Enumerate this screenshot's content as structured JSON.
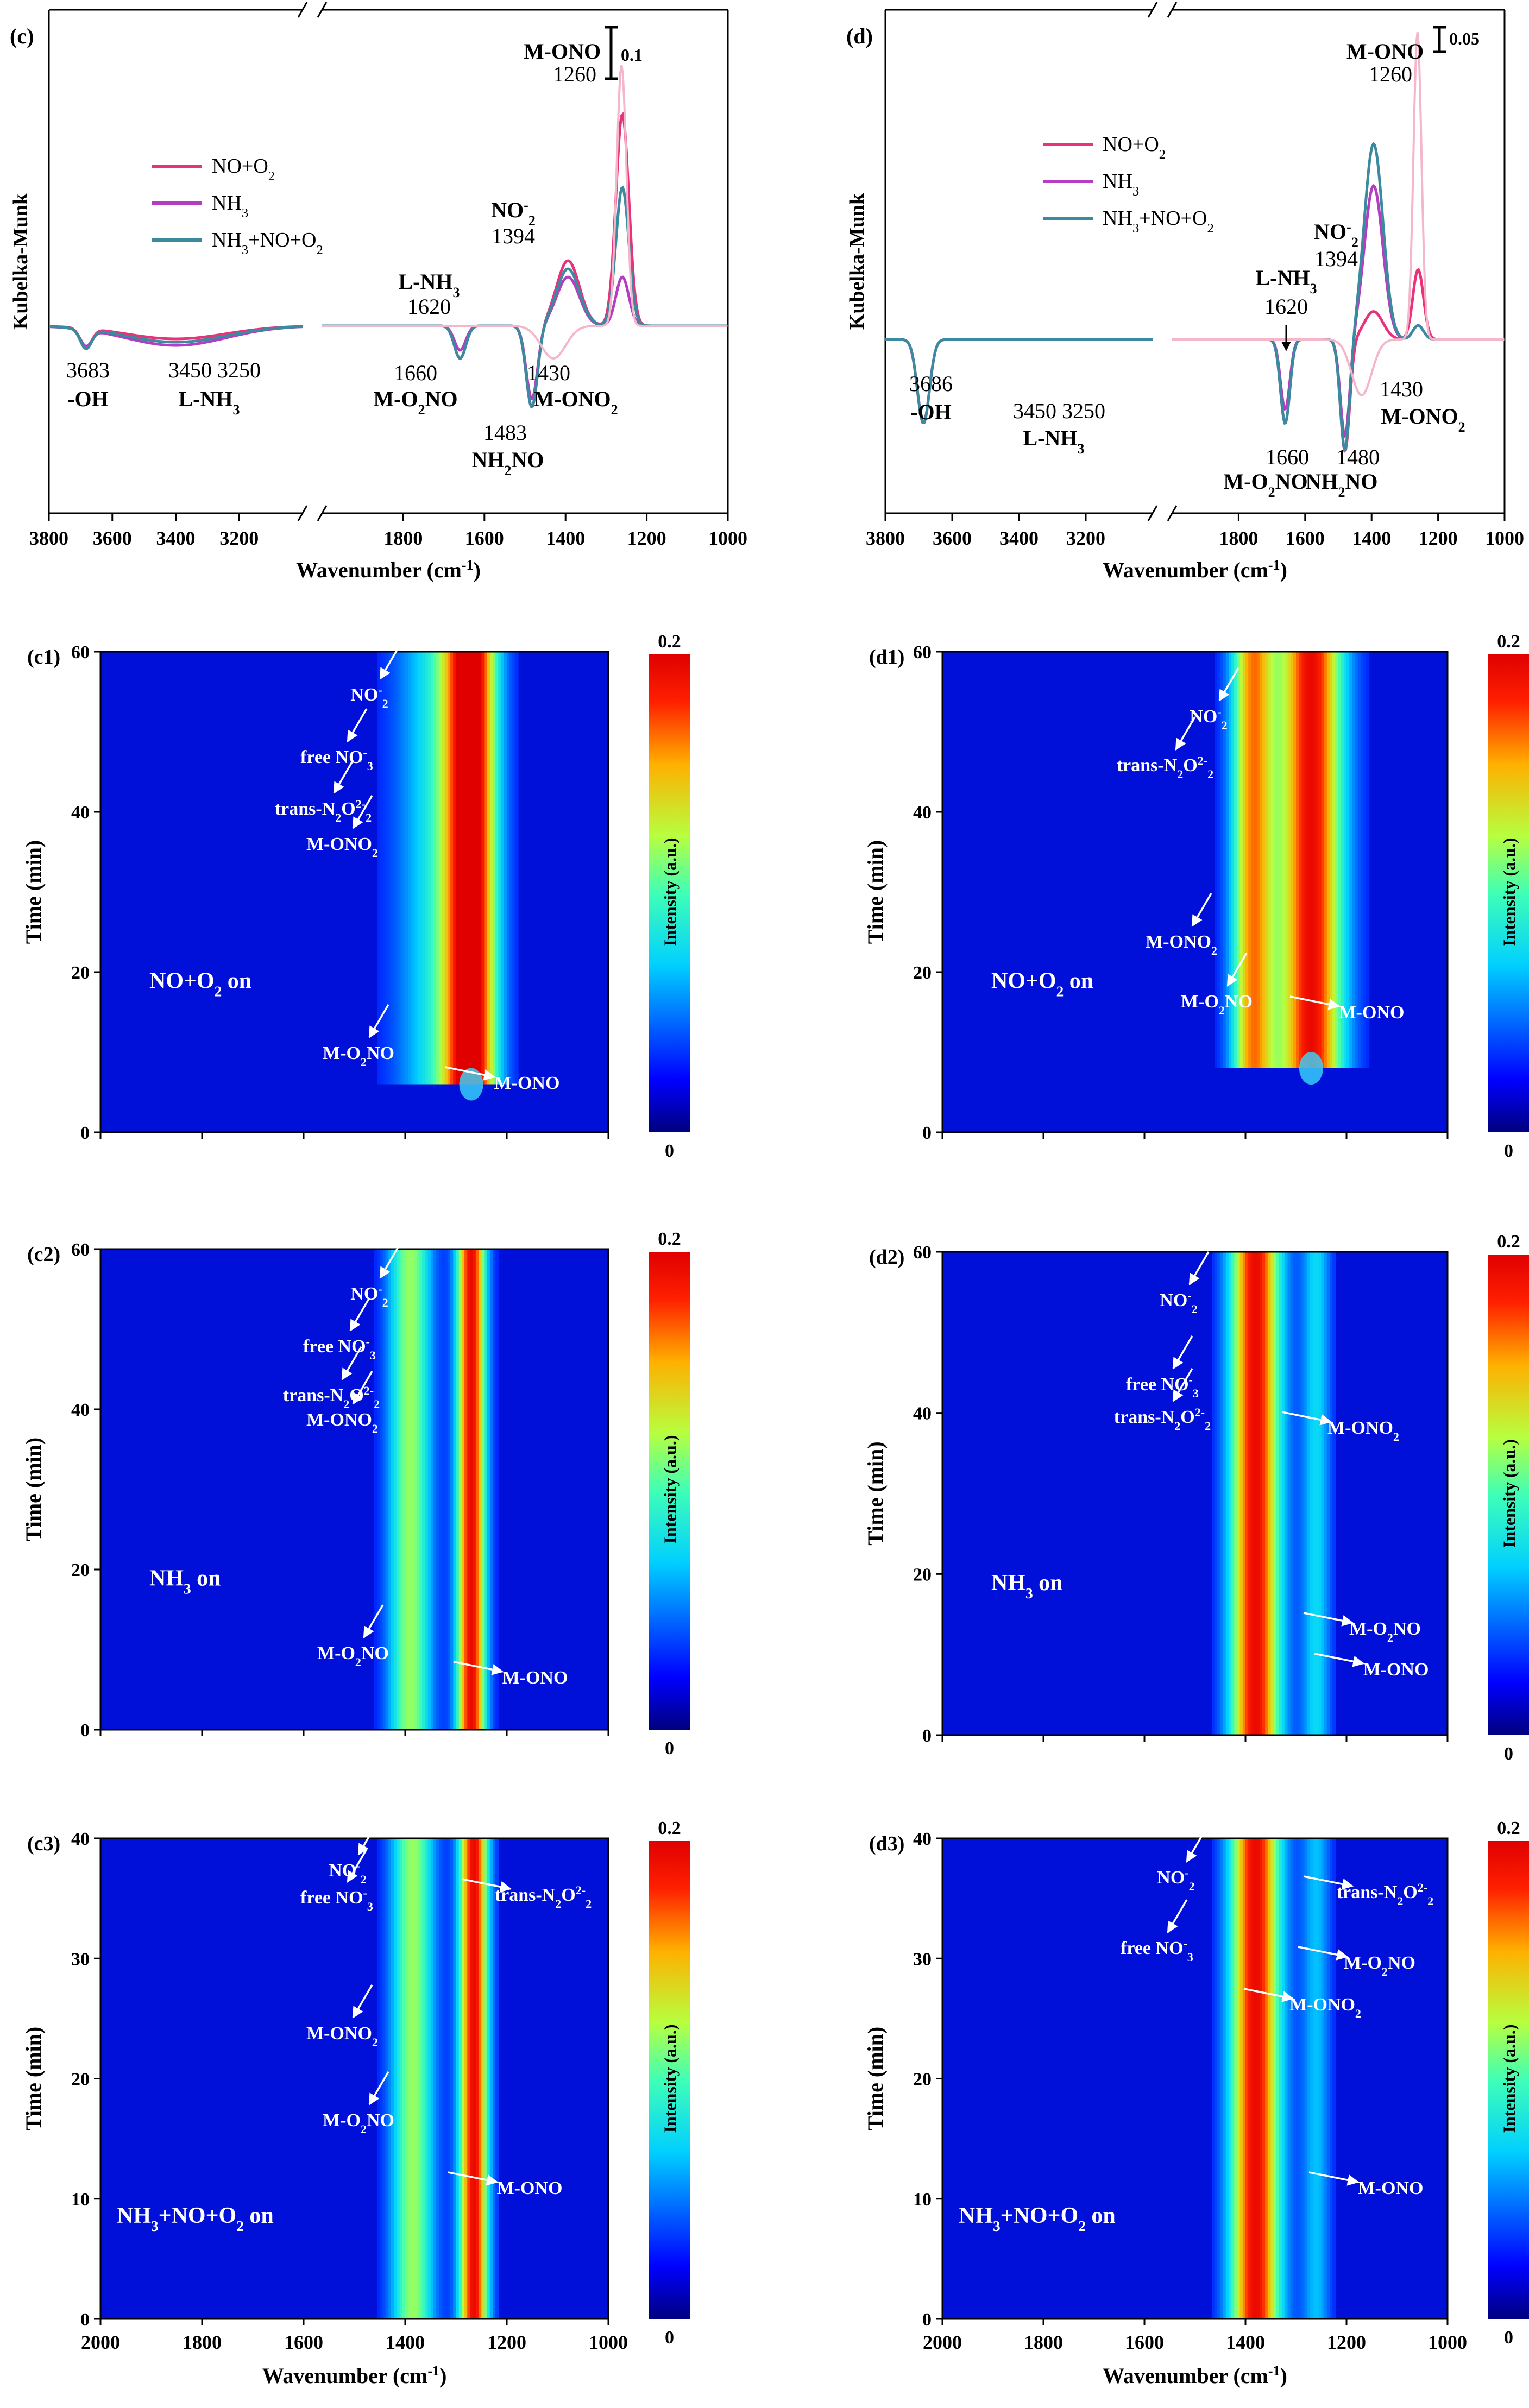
{
  "spectra": [
    {
      "id": "c",
      "panel_label": "(c)",
      "ylabel": "Kubelka-Munk",
      "xlabel": "Wavenumber (cm",
      "xlabel_sup": "-1",
      "xlabel_close": ")",
      "left_ticks": [
        3800,
        3600,
        3400,
        3200
      ],
      "right_ticks": [
        1800,
        1600,
        1400,
        1200,
        1000
      ],
      "scale_bar_label": "0.1",
      "legend": [
        {
          "label": "NO+O",
          "sub": "2",
          "tail": "",
          "color": "#e8337a"
        },
        {
          "label": "NH",
          "sub": "3",
          "tail": "",
          "color": "#b63dc1"
        },
        {
          "label": "NH",
          "sub": "3",
          "tail": "+NO+O",
          "sub2": "2",
          "color": "#3c8aa0"
        }
      ],
      "annotations": [
        {
          "t": "M-ONO",
          "bold": true
        },
        {
          "t": "1260"
        },
        {
          "t": "NO",
          "sup": "-",
          "sub": "2",
          "bold": true
        },
        {
          "t": "1394"
        },
        {
          "t": "L-NH",
          "sub": "3",
          "bold": true
        },
        {
          "t": "1620"
        },
        {
          "t": "3683"
        },
        {
          "t": "-OH",
          "bold": true
        },
        {
          "t": "3450 3250"
        },
        {
          "t": "L-NH",
          "sub": "3",
          "bold": true
        },
        {
          "t": "1660"
        },
        {
          "t": "M-O",
          "sub": "2",
          "tail": "NO",
          "bold": true
        },
        {
          "t": "1430"
        },
        {
          "t": "M-ONO",
          "sub": "2",
          "bold": true
        },
        {
          "t": "1483"
        },
        {
          "t": "NH",
          "sub": "2",
          "tail": "NO",
          "bold": true
        }
      ],
      "series_note": "peak heights in Kubelka-Munk units, estimated",
      "peaks": {
        "NO+O2": {
          "1260": 0.13,
          "1394": 0.04,
          "1483": -0.05,
          "1660": -0.02,
          "3683": -0.012,
          "3400": -0.008
        },
        "NH3": {
          "1260": 0.03,
          "1394": 0.03,
          "1483": -0.045,
          "1660": -0.015,
          "3683": -0.01,
          "3400": -0.012
        },
        "NH3+NO+O2": {
          "1260": 0.085,
          "1394": 0.035,
          "1483": -0.05,
          "1660": -0.02,
          "3683": -0.012,
          "3400": -0.01
        }
      }
    },
    {
      "id": "d",
      "panel_label": "(d)",
      "ylabel": "Kubelka-Munk",
      "xlabel": "Wavenumber (cm",
      "xlabel_sup": "-1",
      "xlabel_close": ")",
      "left_ticks": [
        3800,
        3600,
        3400,
        3200
      ],
      "right_ticks": [
        1800,
        1600,
        1400,
        1200,
        1000
      ],
      "scale_bar_label": "0.05",
      "legend": [
        {
          "label": "NO+O",
          "sub": "2",
          "tail": "",
          "color": "#e8337a"
        },
        {
          "label": "NH",
          "sub": "3",
          "tail": "",
          "color": "#b63dc1"
        },
        {
          "label": "NH",
          "sub": "3",
          "tail": "+NO+O",
          "sub2": "2",
          "color": "#3c8aa0"
        }
      ],
      "annotations": [
        {
          "t": "M-ONO",
          "bold": true
        },
        {
          "t": "1260"
        },
        {
          "t": "NO",
          "sup": "-",
          "sub": "2",
          "bold": true
        },
        {
          "t": "1394"
        },
        {
          "t": "L-NH",
          "sub": "3",
          "bold": true
        },
        {
          "t": "1620"
        },
        {
          "t": "3686"
        },
        {
          "t": "-OH",
          "bold": true
        },
        {
          "t": "3450 3250"
        },
        {
          "t": "L-NH",
          "sub": "3",
          "bold": true
        },
        {
          "t": "1660"
        },
        {
          "t": "M-O",
          "sub": "2",
          "tail": "NO",
          "bold": true
        },
        {
          "t": "1430"
        },
        {
          "t": "M-ONO",
          "sub": "2",
          "bold": true
        },
        {
          "t": "1480"
        },
        {
          "t": "NH",
          "sub": "2",
          "tail": "NO",
          "bold": true
        }
      ],
      "series_note": "peak heights in Kubelka-Munk units, estimated",
      "peaks": {
        "NO+O2": {
          "1260": 0.025,
          "1394": 0.01,
          "1480": -0.04,
          "1660": -0.03,
          "3686": -0.03
        },
        "NH3": {
          "1260": 0.005,
          "1394": 0.055,
          "1480": -0.035,
          "1660": -0.025,
          "3686": -0.03
        },
        "NH3+NO+O2": {
          "1260": 0.005,
          "1394": 0.07,
          "1480": -0.04,
          "1660": -0.03,
          "3686": -0.03
        }
      }
    }
  ],
  "maps": [
    {
      "id": "c1",
      "panel_label": "(c1)",
      "ylabel": "Time (min)",
      "ymax": 60,
      "yticks": [
        0,
        20,
        40,
        60
      ],
      "condition": "NO+O",
      "condition_sub": "2",
      "condition_tail": " on",
      "bands": [
        {
          "center": 1270,
          "width": 35,
          "strength": 1.0
        },
        {
          "center": 1330,
          "width": 60,
          "strength": 0.35
        }
      ],
      "onset_min": 6,
      "labels": [
        "NO2-",
        "free NO3-",
        "trans-N2O22-",
        "M-ONO2",
        "M-O2NO",
        "M-ONO"
      ]
    },
    {
      "id": "d1",
      "panel_label": "(d1)",
      "ylabel": "Time (min)",
      "ymax": 60,
      "yticks": [
        0,
        20,
        40,
        60
      ],
      "condition": "NO+O",
      "condition_sub": "2",
      "condition_tail": " on",
      "bands": [
        {
          "center": 1270,
          "width": 45,
          "strength": 1.0
        },
        {
          "center": 1385,
          "width": 30,
          "strength": 0.8
        }
      ],
      "onset_min": 8,
      "labels": [
        "NO2-",
        "trans-N2O22-",
        "M-ONO2",
        "M-O2NO",
        "M-ONO"
      ]
    },
    {
      "id": "c2",
      "panel_label": "(c2)",
      "ylabel": "Time (min)",
      "ymax": 60,
      "yticks": [
        0,
        20,
        40,
        60
      ],
      "condition": "NH",
      "condition_sub": "3",
      "condition_tail": " on",
      "bands": [
        {
          "center": 1270,
          "width": 20,
          "strength": 1.0
        },
        {
          "center": 1390,
          "width": 30,
          "strength": 0.55
        }
      ],
      "onset_min": 0,
      "labels": [
        "NO2-",
        "free NO3-",
        "trans-N2O22-",
        "M-ONO2",
        "M-O2NO",
        "M-ONO"
      ]
    },
    {
      "id": "d2",
      "panel_label": "(d2)",
      "ylabel": "Time (min)",
      "ymax": 60,
      "yticks": [
        0,
        20,
        40,
        60
      ],
      "condition": "NH",
      "condition_sub": "3",
      "condition_tail": " on",
      "bands": [
        {
          "center": 1380,
          "width": 35,
          "strength": 1.0
        },
        {
          "center": 1260,
          "width": 20,
          "strength": 0.3
        }
      ],
      "onset_min": 0,
      "labels": [
        "NO2-",
        "free NO3-",
        "trans-N2O22-",
        "M-ONO2",
        "M-O2NO",
        "M-ONO"
      ]
    },
    {
      "id": "c3",
      "panel_label": "(c3)",
      "ylabel": "Time (min)",
      "ymax": 40,
      "yticks": [
        0,
        10,
        20,
        30,
        40
      ],
      "condition": "NH",
      "condition_sub": "3",
      "condition_tail": "+NO+O",
      "condition_sub2": "2",
      "condition_tail2": " on",
      "bands": [
        {
          "center": 1265,
          "width": 20,
          "strength": 1.0
        },
        {
          "center": 1385,
          "width": 30,
          "strength": 0.55
        }
      ],
      "onset_min": 0,
      "labels": [
        "NO2-",
        "free NO3-",
        "trans-N2O22-",
        "M-ONO2",
        "M-O2NO",
        "M-ONO"
      ]
    },
    {
      "id": "d3",
      "panel_label": "(d3)",
      "ylabel": "Time (min)",
      "ymax": 40,
      "yticks": [
        0,
        10,
        20,
        30,
        40
      ],
      "condition": "NH",
      "condition_sub": "3",
      "condition_tail": "+NO+O",
      "condition_sub2": "2",
      "condition_tail2": " on",
      "bands": [
        {
          "center": 1380,
          "width": 35,
          "strength": 1.0
        },
        {
          "center": 1260,
          "width": 20,
          "strength": 0.25
        }
      ],
      "onset_min": 0,
      "labels": [
        "NO2-",
        "trans-N2O22-",
        "free NO3-",
        "M-O2NO",
        "M-ONO2",
        "M-ONO"
      ]
    }
  ],
  "map_xticks": [
    2000,
    1800,
    1600,
    1400,
    1200,
    1000
  ],
  "map_xlabel": "Wavenumber (cm",
  "colorbar": {
    "max_label": "0.2",
    "min_label": "0",
    "title": "Intensity (a.u.)"
  }
}
